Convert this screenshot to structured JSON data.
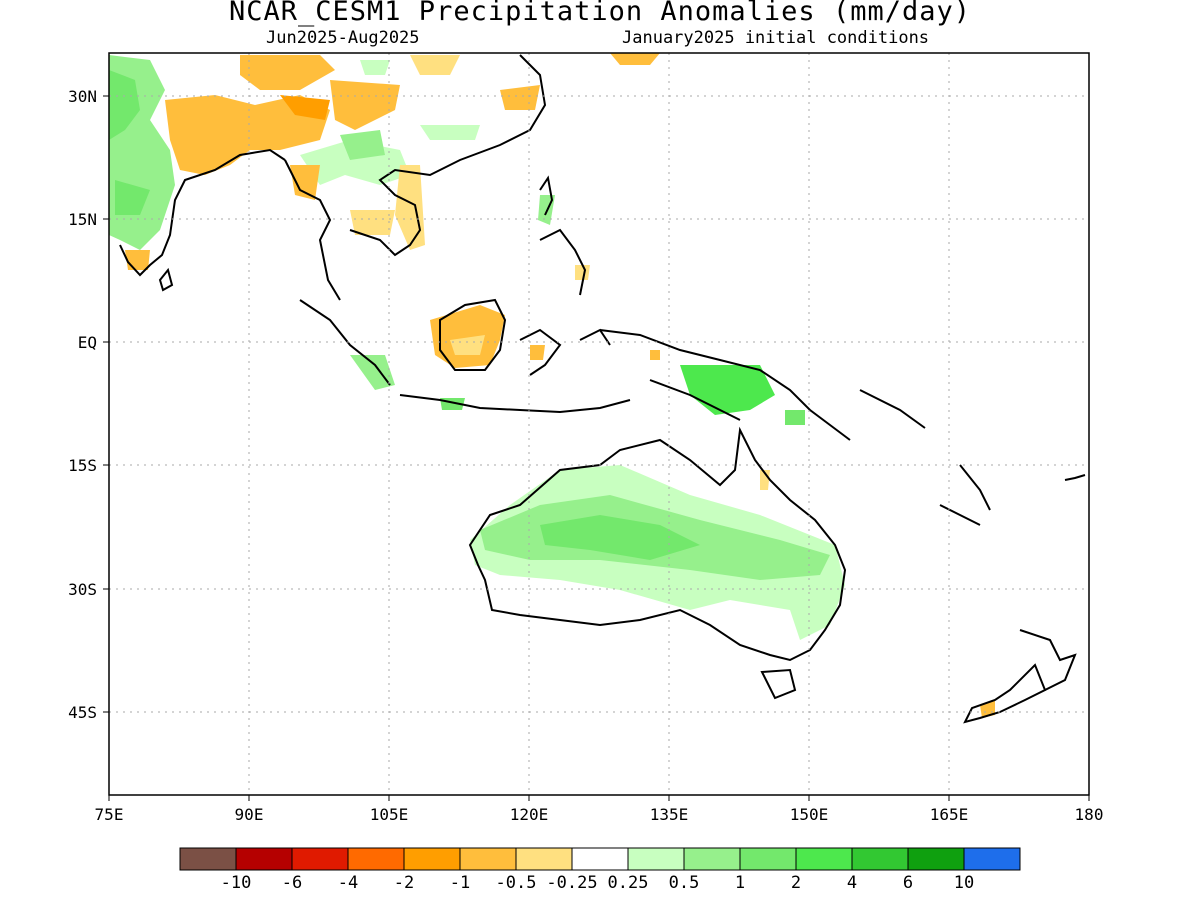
{
  "title": "NCAR_CESM1 Precipitation Anomalies (mm/day)",
  "season": "Jun2025-Aug2025",
  "initial_conditions": "January2025 initial conditions",
  "y_ticks": [
    "30N",
    "15N",
    "EQ",
    "15S",
    "30S",
    "45S"
  ],
  "x_ticks": [
    "75E",
    "90E",
    "105E",
    "120E",
    "135E",
    "150E",
    "165E",
    "180"
  ],
  "colorbar": {
    "colors": [
      "#7b5045",
      "#b50000",
      "#e01a00",
      "#ff6a00",
      "#ff9e00",
      "#ffbe3c",
      "#ffe080",
      "#ffffff",
      "#c8ffc0",
      "#96f08c",
      "#73e86c",
      "#4de84d",
      "#32c832",
      "#0fa00f",
      "#1e6eeb"
    ],
    "labels": [
      "-10",
      "-6",
      "-4",
      "-2",
      "-1",
      "-0.5",
      "-0.25",
      "0.25",
      "0.5",
      "1",
      "2",
      "4",
      "6",
      "10"
    ]
  }
}
